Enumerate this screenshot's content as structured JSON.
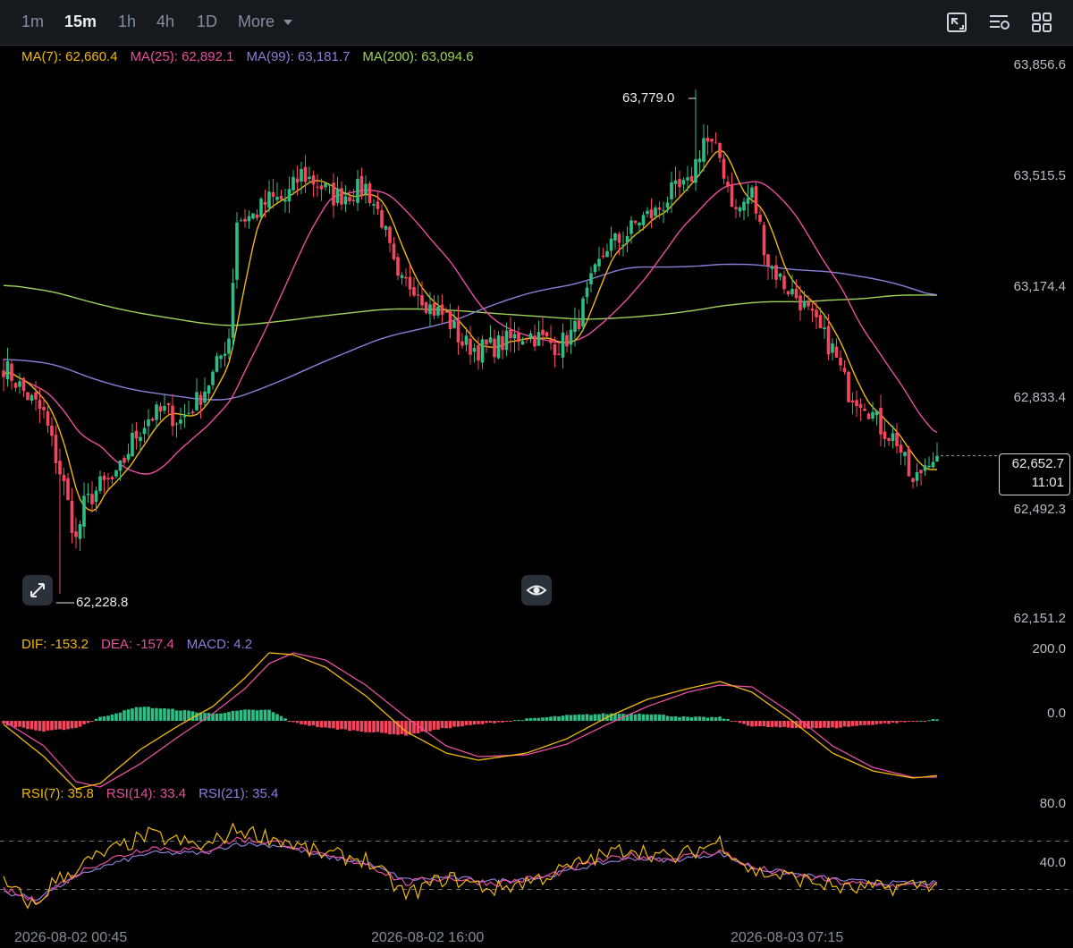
{
  "toolbar": {
    "timeframes": [
      "1m",
      "15m",
      "1h",
      "4h",
      "1D"
    ],
    "active_timeframe": "15m",
    "more_label": "More",
    "icons": [
      "chart-type-icon",
      "indicator-settings-icon",
      "layout-grid-icon"
    ]
  },
  "colors": {
    "background": "#000000",
    "up": "#2ebd85",
    "down": "#f6465d",
    "ma7": "#f0b90b",
    "ma25": "#e84fa0",
    "ma99": "#8c7fd9",
    "ma200": "#9bd45a",
    "dif": "#f0b90b",
    "dea": "#e84fa0",
    "rsi7": "#f0b90b",
    "rsi14": "#e84fa0",
    "rsi21": "#8c7fd9"
  },
  "legend": {
    "ma": [
      "MA(7): 62,660.4",
      "MA(25): 62,892.1",
      "MA(99): 63,181.7",
      "MA(200): 63,094.6"
    ],
    "macd": [
      "DIF: -153.2",
      "DEA: -157.4",
      "MACD: 4.2"
    ],
    "rsi": [
      "RSI(7): 35.8",
      "RSI(14): 33.4",
      "RSI(21): 35.4"
    ]
  },
  "price_axis": [
    "63,856.6",
    "63,515.5",
    "63,174.4",
    "62,833.4",
    "62,492.3",
    "62,151.2"
  ],
  "macd_axis": [
    "200.0",
    "0.0"
  ],
  "rsi_axis": [
    "80.0",
    "40.0"
  ],
  "last_price": "62,652.7",
  "countdown": "11:01",
  "high_label": "63,779.0",
  "low_label": "62,228.8",
  "date_labels": [
    "2026-08-02 00:45",
    "2026-08-02 16:00",
    "2026-08-03 07:15"
  ],
  "chart_data": [
    {
      "type": "line",
      "subtype": "candlestick",
      "title": "",
      "x": "15m candle index (0 = left edge)",
      "price_ylim": [
        62151.2,
        63856.6
      ],
      "high": 63779.0,
      "low": 62228.8,
      "last": 62652.7,
      "close_anchors": [
        [
          0,
          62930
        ],
        [
          5,
          62850
        ],
        [
          10,
          62780
        ],
        [
          15,
          62560
        ],
        [
          18,
          62390
        ],
        [
          20,
          62500
        ],
        [
          24,
          62560
        ],
        [
          28,
          62580
        ],
        [
          32,
          62700
        ],
        [
          36,
          62770
        ],
        [
          40,
          62790
        ],
        [
          44,
          62760
        ],
        [
          48,
          62820
        ],
        [
          52,
          62900
        ],
        [
          56,
          63020
        ],
        [
          58,
          63380
        ],
        [
          62,
          63390
        ],
        [
          66,
          63440
        ],
        [
          70,
          63440
        ],
        [
          74,
          63520
        ],
        [
          78,
          63490
        ],
        [
          82,
          63450
        ],
        [
          86,
          63460
        ],
        [
          90,
          63480
        ],
        [
          94,
          63380
        ],
        [
          98,
          63180
        ],
        [
          102,
          63180
        ],
        [
          106,
          63110
        ],
        [
          110,
          63080
        ],
        [
          114,
          63000
        ],
        [
          118,
          62980
        ],
        [
          122,
          62990
        ],
        [
          126,
          63010
        ],
        [
          130,
          63030
        ],
        [
          134,
          63010
        ],
        [
          138,
          62990
        ],
        [
          142,
          63040
        ],
        [
          146,
          63180
        ],
        [
          150,
          63300
        ],
        [
          154,
          63320
        ],
        [
          158,
          63380
        ],
        [
          162,
          63400
        ],
        [
          166,
          63460
        ],
        [
          170,
          63480
        ],
        [
          174,
          63630
        ],
        [
          178,
          63570
        ],
        [
          182,
          63400
        ],
        [
          186,
          63460
        ],
        [
          190,
          63250
        ],
        [
          194,
          63180
        ],
        [
          198,
          63130
        ],
        [
          202,
          63050
        ],
        [
          206,
          62980
        ],
        [
          210,
          62850
        ],
        [
          214,
          62820
        ],
        [
          218,
          62740
        ],
        [
          222,
          62700
        ],
        [
          226,
          62560
        ],
        [
          230,
          62652.7
        ]
      ],
      "series": [
        {
          "name": "MA(7)",
          "values": [
            62660.4
          ]
        },
        {
          "name": "MA(25)",
          "values": [
            62892.1
          ]
        },
        {
          "name": "MA(99)",
          "values": [
            63181.7
          ]
        },
        {
          "name": "MA(200)",
          "values": [
            63094.6
          ]
        }
      ],
      "xlabels": [
        "2026-08-02 00:45",
        "2026-08-02 16:00",
        "2026-08-03 07:15"
      ]
    },
    {
      "type": "line",
      "subtype": "macd",
      "ylim": [
        -260,
        220
      ],
      "series": [
        {
          "name": "DIF",
          "values_last": -153.2,
          "anchors": [
            [
              0,
              -10
            ],
            [
              10,
              -100
            ],
            [
              18,
              -190
            ],
            [
              24,
              -175
            ],
            [
              34,
              -80
            ],
            [
              44,
              -10
            ],
            [
              52,
              40
            ],
            [
              60,
              120
            ],
            [
              66,
              190
            ],
            [
              72,
              185
            ],
            [
              80,
              150
            ],
            [
              90,
              70
            ],
            [
              100,
              -30
            ],
            [
              110,
              -90
            ],
            [
              118,
              -110
            ],
            [
              130,
              -90
            ],
            [
              140,
              -50
            ],
            [
              150,
              10
            ],
            [
              160,
              60
            ],
            [
              170,
              90
            ],
            [
              178,
              110
            ],
            [
              186,
              80
            ],
            [
              196,
              0
            ],
            [
              206,
              -90
            ],
            [
              216,
              -140
            ],
            [
              226,
              -160
            ],
            [
              232,
              -153.2
            ]
          ]
        },
        {
          "name": "DEA",
          "values_last": -157.4,
          "anchors": [
            [
              0,
              0
            ],
            [
              10,
              -70
            ],
            [
              18,
              -170
            ],
            [
              24,
              -185
            ],
            [
              34,
              -120
            ],
            [
              44,
              -40
            ],
            [
              52,
              20
            ],
            [
              60,
              90
            ],
            [
              66,
              160
            ],
            [
              72,
              190
            ],
            [
              80,
              170
            ],
            [
              90,
              100
            ],
            [
              100,
              10
            ],
            [
              110,
              -70
            ],
            [
              118,
              -100
            ],
            [
              130,
              -95
            ],
            [
              140,
              -65
            ],
            [
              150,
              -10
            ],
            [
              160,
              40
            ],
            [
              170,
              80
            ],
            [
              178,
              100
            ],
            [
              186,
              95
            ],
            [
              196,
              20
            ],
            [
              206,
              -70
            ],
            [
              216,
              -130
            ],
            [
              226,
              -158
            ],
            [
              232,
              -157.4
            ]
          ]
        },
        {
          "name": "MACD",
          "values_last": 4.2
        }
      ]
    },
    {
      "type": "line",
      "subtype": "rsi",
      "ylim": [
        0,
        100
      ],
      "series": [
        {
          "name": "RSI(7)",
          "values_last": 35.8,
          "anchors": [
            [
              0,
              35
            ],
            [
              8,
              15
            ],
            [
              12,
              35
            ],
            [
              22,
              55
            ],
            [
              36,
              75
            ],
            [
              50,
              65
            ],
            [
              58,
              80
            ],
            [
              70,
              70
            ],
            [
              78,
              60
            ],
            [
              90,
              55
            ],
            [
              100,
              25
            ],
            [
              110,
              40
            ],
            [
              122,
              30
            ],
            [
              134,
              40
            ],
            [
              146,
              55
            ],
            [
              156,
              65
            ],
            [
              166,
              55
            ],
            [
              178,
              70
            ],
            [
              186,
              45
            ],
            [
              196,
              40
            ],
            [
              210,
              30
            ],
            [
              222,
              32
            ],
            [
              232,
              35.8
            ]
          ]
        },
        {
          "name": "RSI(14)",
          "values_last": 33.4,
          "anchors": [
            [
              0,
              30
            ],
            [
              8,
              20
            ],
            [
              12,
              30
            ],
            [
              22,
              50
            ],
            [
              36,
              65
            ],
            [
              50,
              62
            ],
            [
              58,
              72
            ],
            [
              70,
              68
            ],
            [
              78,
              58
            ],
            [
              90,
              52
            ],
            [
              100,
              35
            ],
            [
              110,
              40
            ],
            [
              122,
              35
            ],
            [
              134,
              40
            ],
            [
              146,
              52
            ],
            [
              156,
              58
            ],
            [
              166,
              55
            ],
            [
              178,
              62
            ],
            [
              186,
              48
            ],
            [
              196,
              42
            ],
            [
              210,
              35
            ],
            [
              222,
              33
            ],
            [
              232,
              33.4
            ]
          ]
        },
        {
          "name": "RSI(21)",
          "values_last": 35.4,
          "anchors": [
            [
              0,
              28
            ],
            [
              8,
              22
            ],
            [
              12,
              30
            ],
            [
              22,
              46
            ],
            [
              36,
              60
            ],
            [
              50,
              60
            ],
            [
              58,
              68
            ],
            [
              70,
              66
            ],
            [
              78,
              58
            ],
            [
              90,
              52
            ],
            [
              100,
              38
            ],
            [
              110,
              40
            ],
            [
              122,
              37
            ],
            [
              134,
              40
            ],
            [
              146,
              50
            ],
            [
              156,
              56
            ],
            [
              166,
              54
            ],
            [
              178,
              60
            ],
            [
              186,
              48
            ],
            [
              196,
              43
            ],
            [
              210,
              37
            ],
            [
              222,
              35
            ],
            [
              232,
              35.4
            ]
          ]
        }
      ],
      "levels": [
        70,
        30
      ]
    }
  ]
}
